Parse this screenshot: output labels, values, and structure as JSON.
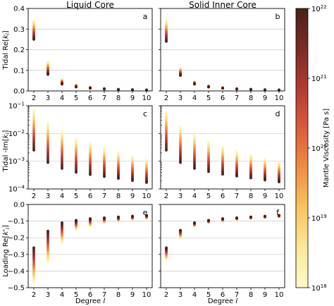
{
  "figure": {
    "column_titles": [
      "Liquid Core",
      "Solid Inner Core"
    ],
    "colorbar": {
      "label": "Mantle Viscosity [Pa s]",
      "range_exponent": [
        18,
        22
      ],
      "ticks": [
        {
          "base": "10",
          "exp": "18",
          "value": 18
        },
        {
          "base": "10",
          "exp": "19",
          "value": 19
        },
        {
          "base": "10",
          "exp": "20",
          "value": 20
        },
        {
          "base": "10",
          "exp": "21",
          "value": 21
        },
        {
          "base": "10",
          "exp": "22",
          "value": 22
        }
      ],
      "colors": [
        "#fff9c8",
        "#fde79a",
        "#f9c45e",
        "#ef8e42",
        "#dc5a3c",
        "#b13a33",
        "#7a2b25",
        "#4a2018"
      ]
    },
    "shared_xlabel": {
      "text": "Degree ",
      "var": "l"
    },
    "row_ylabels": [
      {
        "text": "Tidal Re[",
        "var": "k",
        "sub": "l",
        "end": "]"
      },
      {
        "text": "Tidal -Im[",
        "var": "k",
        "sub": "l",
        "end": "]"
      },
      {
        "text": "Loading Re[",
        "var": "k'",
        "sub": "l",
        "end": "]"
      }
    ]
  },
  "chart_data": [
    {
      "type": "scatter",
      "panel": "a",
      "row": 0,
      "col": 0,
      "xticks": [
        "2",
        "3",
        "4",
        "5",
        "6",
        "7",
        "8",
        "9",
        "10"
      ],
      "xlim": [
        1.6,
        10.4
      ],
      "ylim": [
        0,
        0.4
      ],
      "yscale": "linear",
      "yticks": [
        {
          "v": 0,
          "t": "0.0"
        },
        {
          "v": 0.1,
          "t": "0.1"
        },
        {
          "v": 0.2,
          "t": "0.2"
        },
        {
          "v": 0.3,
          "t": "0.3"
        },
        {
          "v": 0.4,
          "t": "0.4"
        }
      ],
      "grid": true,
      "series": [
        {
          "degree": 2,
          "min": 0.25,
          "max": 0.34
        },
        {
          "degree": 3,
          "min": 0.08,
          "max": 0.14
        },
        {
          "degree": 4,
          "min": 0.033,
          "max": 0.055
        },
        {
          "degree": 5,
          "min": 0.019,
          "max": 0.03
        },
        {
          "degree": 6,
          "min": 0.013,
          "max": 0.019
        },
        {
          "degree": 7,
          "min": 0.009,
          "max": 0.013
        },
        {
          "degree": 8,
          "min": 0.006,
          "max": 0.01
        },
        {
          "degree": 9,
          "min": 0.005,
          "max": 0.008
        },
        {
          "degree": 10,
          "min": 0.004,
          "max": 0.006
        }
      ]
    },
    {
      "type": "scatter",
      "panel": "b",
      "row": 0,
      "col": 1,
      "xticks": [
        "2",
        "3",
        "4",
        "5",
        "6",
        "7",
        "8",
        "9",
        "10"
      ],
      "xlim": [
        1.6,
        10.4
      ],
      "ylim": [
        0,
        0.4
      ],
      "yscale": "linear",
      "yticks": [],
      "grid": true,
      "series": [
        {
          "degree": 2,
          "min": 0.24,
          "max": 0.34
        },
        {
          "degree": 3,
          "min": 0.075,
          "max": 0.11
        },
        {
          "degree": 4,
          "min": 0.033,
          "max": 0.045
        },
        {
          "degree": 5,
          "min": 0.019,
          "max": 0.026
        },
        {
          "degree": 6,
          "min": 0.013,
          "max": 0.017
        },
        {
          "degree": 7,
          "min": 0.009,
          "max": 0.012
        },
        {
          "degree": 8,
          "min": 0.007,
          "max": 0.009
        },
        {
          "degree": 9,
          "min": 0.005,
          "max": 0.007
        },
        {
          "degree": 10,
          "min": 0.004,
          "max": 0.006
        }
      ]
    },
    {
      "type": "scatter",
      "panel": "c",
      "row": 1,
      "col": 0,
      "xticks": [
        "2",
        "3",
        "4",
        "5",
        "6",
        "7",
        "8",
        "9",
        "10"
      ],
      "xlim": [
        1.6,
        10.4
      ],
      "ylim": [
        0.0001,
        0.1
      ],
      "yscale": "log",
      "yticks": [
        {
          "v": 0.1,
          "base": "10",
          "exp": "−1"
        },
        {
          "v": 0.01,
          "base": "10",
          "exp": "−2"
        },
        {
          "v": 0.001,
          "base": "10",
          "exp": "−3"
        },
        {
          "v": 0.0001,
          "base": "10",
          "exp": "−4"
        }
      ],
      "grid": true,
      "series": [
        {
          "degree": 2,
          "min": 0.0025,
          "max": 0.07
        },
        {
          "degree": 3,
          "min": 0.0009,
          "max": 0.025
        },
        {
          "degree": 4,
          "min": 0.00055,
          "max": 0.012
        },
        {
          "degree": 5,
          "min": 0.0004,
          "max": 0.0065
        },
        {
          "degree": 6,
          "min": 0.00033,
          "max": 0.0045
        },
        {
          "degree": 7,
          "min": 0.00028,
          "max": 0.003
        },
        {
          "degree": 8,
          "min": 0.00024,
          "max": 0.0021
        },
        {
          "degree": 9,
          "min": 0.0002,
          "max": 0.0015
        },
        {
          "degree": 10,
          "min": 0.00017,
          "max": 0.0011
        }
      ]
    },
    {
      "type": "scatter",
      "panel": "d",
      "row": 1,
      "col": 1,
      "xticks": [
        "2",
        "3",
        "4",
        "5",
        "6",
        "7",
        "8",
        "9",
        "10"
      ],
      "xlim": [
        1.6,
        10.4
      ],
      "ylim": [
        0.0001,
        0.1
      ],
      "yscale": "log",
      "yticks": [],
      "grid": true,
      "series": [
        {
          "degree": 2,
          "min": 0.0025,
          "max": 0.06
        },
        {
          "degree": 3,
          "min": 0.0009,
          "max": 0.018
        },
        {
          "degree": 4,
          "min": 0.00055,
          "max": 0.009
        },
        {
          "degree": 5,
          "min": 0.00042,
          "max": 0.005
        },
        {
          "degree": 6,
          "min": 0.00034,
          "max": 0.0032
        },
        {
          "degree": 7,
          "min": 0.00029,
          "max": 0.0022
        },
        {
          "degree": 8,
          "min": 0.00025,
          "max": 0.0016
        },
        {
          "degree": 9,
          "min": 0.00021,
          "max": 0.0012
        },
        {
          "degree": 10,
          "min": 0.00018,
          "max": 0.0009
        }
      ]
    },
    {
      "type": "scatter",
      "panel": "e",
      "row": 2,
      "col": 0,
      "xticks": [
        "2",
        "3",
        "4",
        "5",
        "6",
        "7",
        "8",
        "9",
        "10"
      ],
      "xlim": [
        1.6,
        10.4
      ],
      "ylim": [
        -0.5,
        0
      ],
      "yscale": "linear",
      "yticks": [
        {
          "v": 0,
          "t": "0.0"
        },
        {
          "v": -0.1,
          "t": "−0.1"
        },
        {
          "v": -0.2,
          "t": "−0.2"
        },
        {
          "v": -0.3,
          "t": "−0.3"
        },
        {
          "v": -0.4,
          "t": "−0.4"
        },
        {
          "v": -0.5,
          "t": "−0.5"
        }
      ],
      "grid": true,
      "series": [
        {
          "degree": 2,
          "min": -0.47,
          "max": -0.26
        },
        {
          "degree": 3,
          "min": -0.35,
          "max": -0.16
        },
        {
          "degree": 4,
          "min": -0.23,
          "max": -0.11
        },
        {
          "degree": 5,
          "min": -0.15,
          "max": -0.095
        },
        {
          "degree": 6,
          "min": -0.13,
          "max": -0.085
        },
        {
          "degree": 7,
          "min": -0.11,
          "max": -0.08
        },
        {
          "degree": 8,
          "min": -0.1,
          "max": -0.075
        },
        {
          "degree": 9,
          "min": -0.09,
          "max": -0.07
        },
        {
          "degree": 10,
          "min": -0.085,
          "max": -0.065
        }
      ]
    },
    {
      "type": "scatter",
      "panel": "f",
      "row": 2,
      "col": 1,
      "xticks": [
        "2",
        "3",
        "4",
        "5",
        "6",
        "7",
        "8",
        "9",
        "10"
      ],
      "xlim": [
        1.6,
        10.4
      ],
      "ylim": [
        -0.5,
        0
      ],
      "yscale": "linear",
      "yticks": [],
      "grid": true,
      "series": [
        {
          "degree": 2,
          "min": -0.33,
          "max": -0.26
        },
        {
          "degree": 3,
          "min": -0.2,
          "max": -0.155
        },
        {
          "degree": 4,
          "min": -0.13,
          "max": -0.11
        },
        {
          "degree": 5,
          "min": -0.11,
          "max": -0.095
        },
        {
          "degree": 6,
          "min": -0.1,
          "max": -0.085
        },
        {
          "degree": 7,
          "min": -0.09,
          "max": -0.08
        },
        {
          "degree": 8,
          "min": -0.085,
          "max": -0.075
        },
        {
          "degree": 9,
          "min": -0.08,
          "max": -0.07
        },
        {
          "degree": 10,
          "min": -0.075,
          "max": -0.065
        }
      ]
    }
  ]
}
